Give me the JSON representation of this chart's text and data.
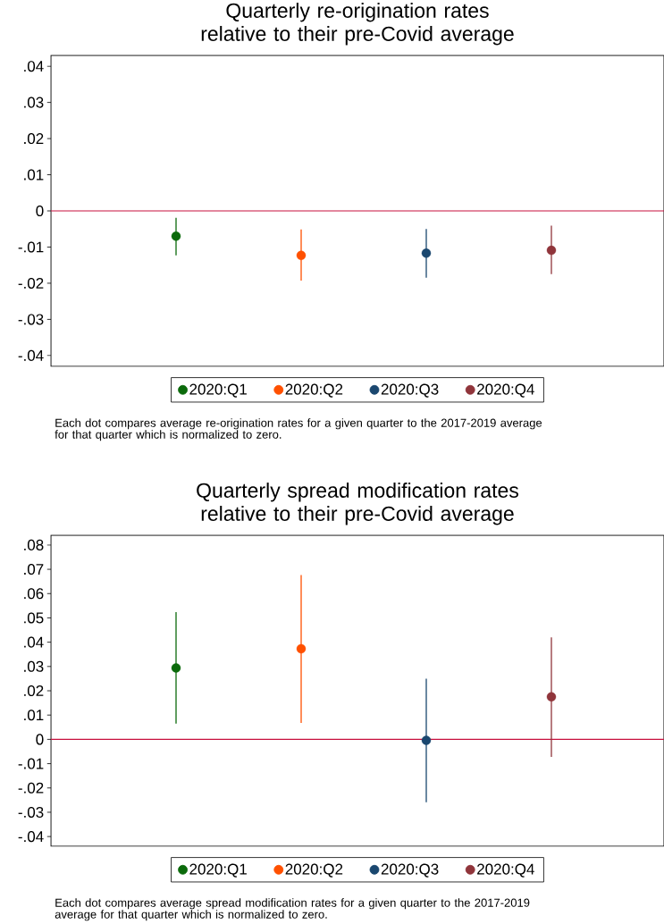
{
  "chart_data": [
    {
      "type": "scatter",
      "title": "Quarterly re-origination rates relative to their pre-Covid average",
      "categories": [
        null,
        null,
        null,
        null
      ],
      "series": [
        {
          "name": "2020:Q1",
          "color": "#0b6a0b",
          "values": [
            -0.007,
            null,
            null,
            null
          ],
          "errors": [
            [
              -0.0123,
              -0.0019
            ],
            null,
            null,
            null
          ]
        },
        {
          "name": "2020:Q2",
          "color": "#ff5000",
          "values": [
            null,
            -0.0123,
            null,
            null
          ],
          "errors": [
            null,
            [
              -0.0193,
              -0.0051
            ],
            null,
            null
          ]
        },
        {
          "name": "2020:Q3",
          "color": "#1a476f",
          "values": [
            null,
            null,
            -0.0117,
            null
          ],
          "errors": [
            null,
            null,
            [
              -0.0185,
              -0.005
            ],
            null
          ]
        },
        {
          "name": "2020:Q4",
          "color": "#90353b",
          "values": [
            null,
            null,
            null,
            -0.0109
          ],
          "errors": [
            null,
            null,
            null,
            [
              -0.0175,
              -0.0041
            ]
          ]
        }
      ],
      "ylim": [
        -0.043,
        0.043
      ],
      "yticks": [
        {
          "value": -0.04,
          "label": "-.04"
        },
        {
          "value": -0.03,
          "label": "-.03"
        },
        {
          "value": -0.02,
          "label": "-.02"
        },
        {
          "value": -0.01,
          "label": "-.01"
        },
        {
          "value": 0,
          "label": "0"
        },
        {
          "value": 0.01,
          "label": ".01"
        },
        {
          "value": 0.02,
          "label": ".02"
        },
        {
          "value": 0.03,
          "label": ".03"
        },
        {
          "value": 0.04,
          "label": ".04"
        }
      ],
      "ref_lines": [
        {
          "axis": "y",
          "value": 0,
          "color": "#c8103e"
        }
      ],
      "marker": "circle",
      "legend": "bottom",
      "annotations": [
        "Each dot compares average re-origination rates for a given quarter to the 2017-2019 average for that quarter which is normalized to zero."
      ]
    },
    {
      "type": "scatter",
      "title": "Quarterly spread modification rates relative to their pre-Covid average",
      "categories": [
        null,
        null,
        null,
        null
      ],
      "series": [
        {
          "name": "2020:Q1",
          "color": "#0b6a0b",
          "values": [
            0.0294,
            null,
            null,
            null
          ],
          "errors": [
            [
              0.0065,
              0.0524
            ],
            null,
            null,
            null
          ]
        },
        {
          "name": "2020:Q2",
          "color": "#ff5000",
          "values": [
            null,
            0.0373,
            null,
            null
          ],
          "errors": [
            null,
            [
              0.0068,
              0.0676
            ],
            null,
            null
          ]
        },
        {
          "name": "2020:Q3",
          "color": "#1a476f",
          "values": [
            null,
            null,
            -0.0004,
            null
          ],
          "errors": [
            null,
            null,
            [
              -0.0259,
              0.025
            ],
            null
          ]
        },
        {
          "name": "2020:Q4",
          "color": "#90353b",
          "values": [
            null,
            null,
            null,
            0.0175
          ],
          "errors": [
            null,
            null,
            null,
            [
              -0.0072,
              0.042
            ]
          ]
        }
      ],
      "ylim": [
        -0.044,
        0.084
      ],
      "yticks": [
        {
          "value": -0.04,
          "label": "-.04"
        },
        {
          "value": -0.03,
          "label": "-.03"
        },
        {
          "value": -0.02,
          "label": "-.02"
        },
        {
          "value": -0.01,
          "label": "-.01"
        },
        {
          "value": 0,
          "label": "0"
        },
        {
          "value": 0.01,
          "label": ".01"
        },
        {
          "value": 0.02,
          "label": ".02"
        },
        {
          "value": 0.03,
          "label": ".03"
        },
        {
          "value": 0.04,
          "label": ".04"
        },
        {
          "value": 0.05,
          "label": ".05"
        },
        {
          "value": 0.06,
          "label": ".06"
        },
        {
          "value": 0.07,
          "label": ".07"
        },
        {
          "value": 0.08,
          "label": ".08"
        }
      ],
      "ref_lines": [
        {
          "axis": "y",
          "value": 0,
          "color": "#c8103e"
        }
      ],
      "marker": "circle",
      "legend": "bottom",
      "annotations": [
        "Each dot compares average spread modification rates for a given quarter to the 2017-2019 average for that quarter which is normalized to zero."
      ]
    }
  ]
}
